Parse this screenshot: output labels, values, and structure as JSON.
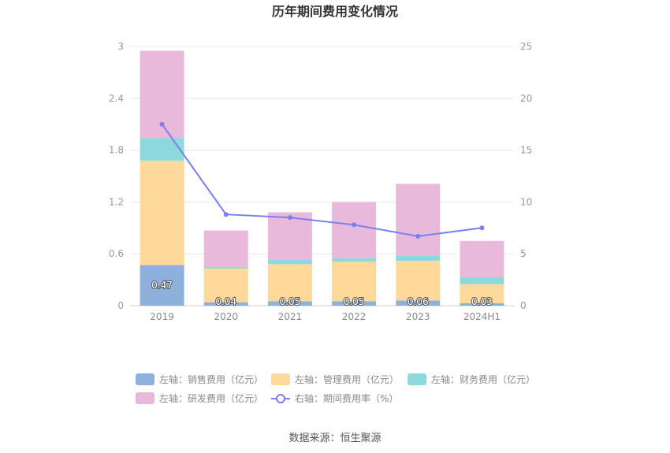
{
  "chart_data": {
    "type": "bar",
    "title": "历年期间费用变化情况",
    "categories": [
      "2019",
      "2020",
      "2021",
      "2022",
      "2023",
      "2024H1"
    ],
    "stacked": true,
    "left_axis": {
      "min": 0,
      "max": 3,
      "ticks": [
        "0",
        "0.6",
        "1.2",
        "1.8",
        "2.4",
        "3"
      ]
    },
    "right_axis": {
      "min": 0,
      "max": 25,
      "ticks": [
        "0",
        "5",
        "10",
        "15",
        "20",
        "25"
      ]
    },
    "series": [
      {
        "name": "左轴：销售费用（亿元）",
        "color": "#8eb0dc",
        "axis": "left",
        "type": "bar",
        "values": [
          0.47,
          0.04,
          0.05,
          0.05,
          0.06,
          0.03
        ],
        "labels": [
          "0.47",
          "0.04",
          "0.05",
          "0.05",
          "0.06",
          "0.03"
        ]
      },
      {
        "name": "左轴：管理费用（亿元）",
        "color": "#ffd999",
        "axis": "left",
        "type": "bar",
        "values": [
          1.21,
          0.39,
          0.43,
          0.46,
          0.46,
          0.22
        ]
      },
      {
        "name": "左轴：财务费用（亿元）",
        "color": "#8dd8dc",
        "axis": "left",
        "type": "bar",
        "values": [
          0.26,
          0.02,
          0.05,
          0.04,
          0.06,
          0.08
        ]
      },
      {
        "name": "左轴：研发费用（亿元）",
        "color": "#e8b9da",
        "axis": "left",
        "type": "bar",
        "values": [
          1.01,
          0.42,
          0.55,
          0.65,
          0.83,
          0.42
        ]
      },
      {
        "name": "右轴：期间费用率（%）",
        "color": "#7b7fef",
        "axis": "right",
        "type": "line",
        "values": [
          17.5,
          8.8,
          8.5,
          7.8,
          6.7,
          7.5
        ]
      }
    ],
    "grid": true,
    "legend_position": "bottom"
  },
  "source": "数据来源：恒生聚源"
}
